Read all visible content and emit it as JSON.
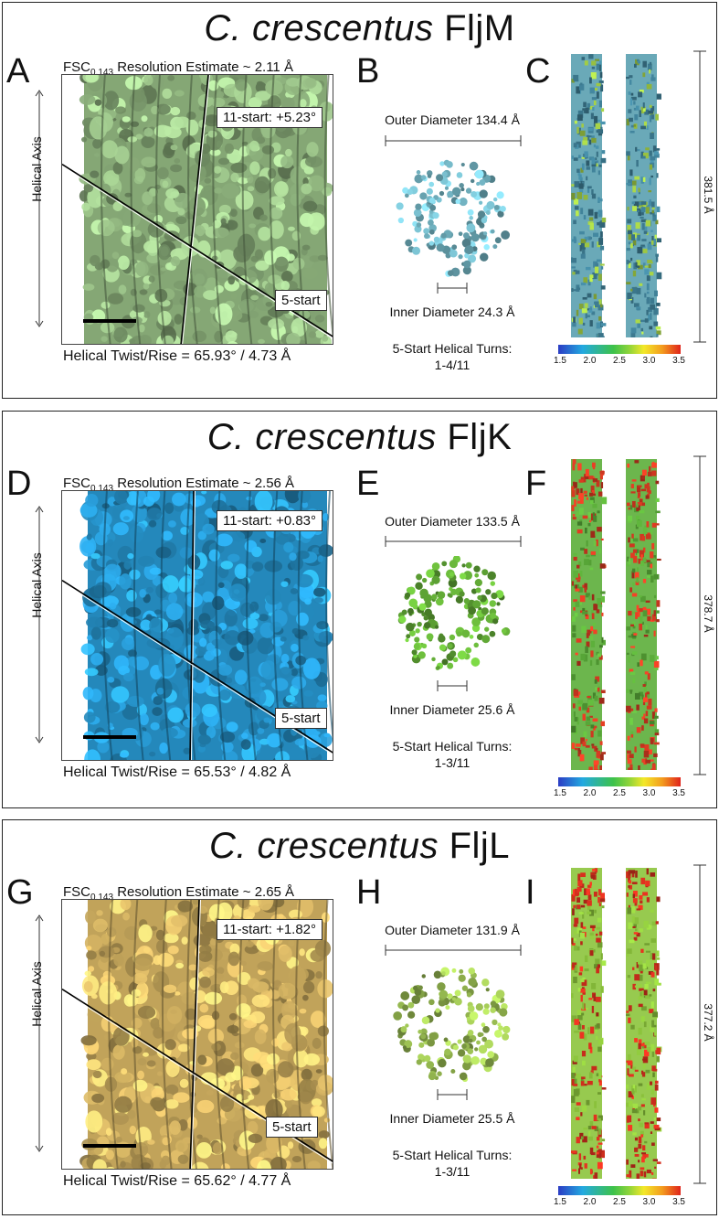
{
  "panels": [
    {
      "id": "fljm",
      "title_species": "C. crescentus",
      "title_protein": "FljM",
      "letters": [
        "A",
        "B",
        "C"
      ],
      "fsc_prefix": "FSC",
      "fsc_sub": "0.143",
      "fsc_text": " Resolution Estimate ~ 2.11 Å",
      "eleven_start": "11-start: +5.23°",
      "five_start": "5-start",
      "helical_axis": "Helical Axis",
      "twist_rise": "Helical Twist/Rise = 65.93° / 4.73 Å",
      "outer_diameter": "Outer Diameter 134.4 Å",
      "inner_diameter": "Inner Diameter 24.3 Å",
      "turns_label": "5-Start Helical Turns:",
      "turns_value": "1-4/11",
      "length": "381.5 Å",
      "colorbar_ticks": [
        "1.5",
        "2.0",
        "2.5",
        "3.0",
        "3.5"
      ],
      "map_color": "#9cc48a",
      "ring_color": "#7fc8d8",
      "filament_colors": [
        "#5aa0b0",
        "#8cc04a"
      ]
    },
    {
      "id": "fljk",
      "title_species": "C. crescentus",
      "title_protein": "FljK",
      "letters": [
        "D",
        "E",
        "F"
      ],
      "fsc_prefix": "FSC",
      "fsc_sub": "0.143",
      "fsc_text": " Resolution Estimate ~ 2.56 Å",
      "eleven_start": "11-start: +0.83°",
      "five_start": "5-start",
      "helical_axis": "Helical Axis",
      "twist_rise": "Helical Twist/Rise = 65.53° / 4.82 Å",
      "outer_diameter": "Outer Diameter 133.5 Å",
      "inner_diameter": "Inner Diameter 25.6 Å",
      "turns_label": "5-Start Helical Turns:",
      "turns_value": "1-3/11",
      "length": "378.7 Å",
      "colorbar_ticks": [
        "1.5",
        "2.0",
        "2.5",
        "3.0",
        "3.5"
      ],
      "map_color": "#2aa0dc",
      "ring_color": "#6cbc3c",
      "filament_colors": [
        "#5cae3a",
        "#d83a22"
      ]
    },
    {
      "id": "fljl",
      "title_species": "C. crescentus",
      "title_protein": "FljL",
      "letters": [
        "G",
        "H",
        "I"
      ],
      "fsc_prefix": "FSC",
      "fsc_sub": "0.143",
      "fsc_text": " Resolution Estimate ~ 2.65 Å",
      "eleven_start": "11-start: +1.82°",
      "five_start": "5-start",
      "helical_axis": "Helical Axis",
      "twist_rise": "Helical Twist/Rise = 65.62° / 4.77 Å",
      "outer_diameter": "Outer Diameter 131.9 Å",
      "inner_diameter": "Inner Diameter 25.5 Å",
      "turns_label": "5-Start Helical Turns:",
      "turns_value": "1-3/11",
      "length": "377.2 Å",
      "colorbar_ticks": [
        "1.5",
        "2.0",
        "2.5",
        "3.0",
        "3.5"
      ],
      "map_color": "#e3c06a",
      "ring_color": "#a8cf5a",
      "filament_colors": [
        "#8cc43c",
        "#d8301e"
      ]
    }
  ]
}
